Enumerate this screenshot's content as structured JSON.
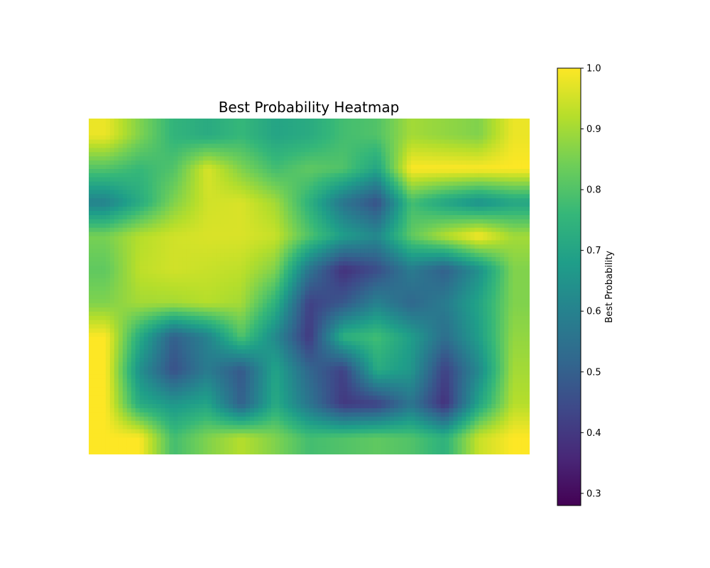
{
  "chart_data": {
    "type": "heatmap",
    "title": "Best Probability Heatmap",
    "xlabel": "",
    "ylabel": "",
    "axes_visible": false,
    "grid": false,
    "colormap": "viridis",
    "value_range": [
      0.28,
      1.0
    ],
    "colorbar": {
      "label": "Best Probability",
      "placement": "right",
      "ticks": [
        0.3,
        0.4,
        0.5,
        0.6,
        0.7,
        0.8,
        0.9,
        1.0
      ],
      "tick_labels": [
        "0.3",
        "0.4",
        "0.5",
        "0.6",
        "0.7",
        "0.8",
        "0.9",
        "1.0"
      ]
    },
    "grid_shape": [
      10,
      13
    ],
    "values": [
      [
        0.98,
        0.86,
        0.75,
        0.72,
        0.76,
        0.7,
        0.72,
        0.78,
        0.8,
        0.9,
        0.88,
        0.86,
        0.98
      ],
      [
        0.8,
        0.76,
        0.8,
        0.96,
        0.86,
        0.78,
        0.82,
        0.8,
        0.7,
        1.0,
        1.0,
        1.0,
        1.0
      ],
      [
        0.6,
        0.72,
        0.86,
        0.95,
        0.96,
        0.9,
        0.74,
        0.56,
        0.46,
        0.78,
        0.7,
        0.64,
        0.7
      ],
      [
        0.85,
        0.92,
        0.95,
        0.96,
        0.96,
        0.94,
        0.8,
        0.68,
        0.62,
        0.82,
        0.92,
        1.0,
        0.9
      ],
      [
        0.82,
        0.93,
        0.95,
        0.94,
        0.93,
        0.86,
        0.56,
        0.38,
        0.45,
        0.58,
        0.5,
        0.64,
        0.86
      ],
      [
        0.86,
        0.9,
        0.9,
        0.92,
        0.9,
        0.74,
        0.42,
        0.48,
        0.6,
        0.52,
        0.58,
        0.7,
        0.86
      ],
      [
        1.0,
        0.72,
        0.5,
        0.6,
        0.8,
        0.62,
        0.4,
        0.74,
        0.78,
        0.68,
        0.54,
        0.68,
        0.88
      ],
      [
        1.0,
        0.64,
        0.46,
        0.58,
        0.48,
        0.7,
        0.52,
        0.42,
        0.72,
        0.66,
        0.42,
        0.62,
        0.9
      ],
      [
        1.0,
        0.72,
        0.66,
        0.7,
        0.5,
        0.72,
        0.56,
        0.4,
        0.42,
        0.56,
        0.38,
        0.7,
        0.92
      ],
      [
        1.0,
        1.0,
        0.78,
        0.86,
        0.92,
        0.86,
        0.78,
        0.8,
        0.82,
        0.8,
        0.74,
        0.94,
        1.0
      ]
    ]
  }
}
